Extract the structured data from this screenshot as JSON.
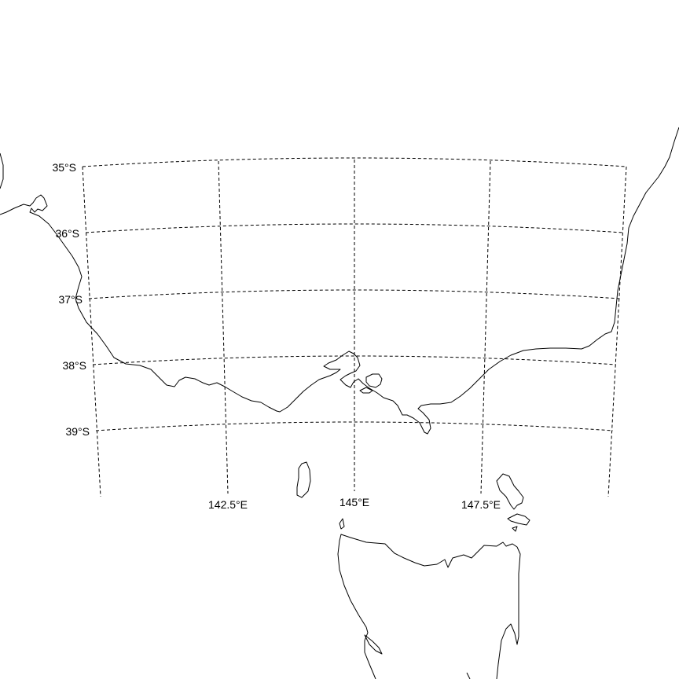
{
  "map": {
    "projection": "conic",
    "background_color": "#ffffff",
    "line_color": "#000000",
    "graticule_style": "dashed",
    "latitude_labels": [
      "35°S",
      "36°S",
      "37°S",
      "38°S",
      "39°S"
    ],
    "longitude_labels": [
      "142.5°E",
      "145°E",
      "147.5°E"
    ],
    "features": [
      "southeastern Australia coastline",
      "Bass Strait islands",
      "Tasmania"
    ]
  }
}
